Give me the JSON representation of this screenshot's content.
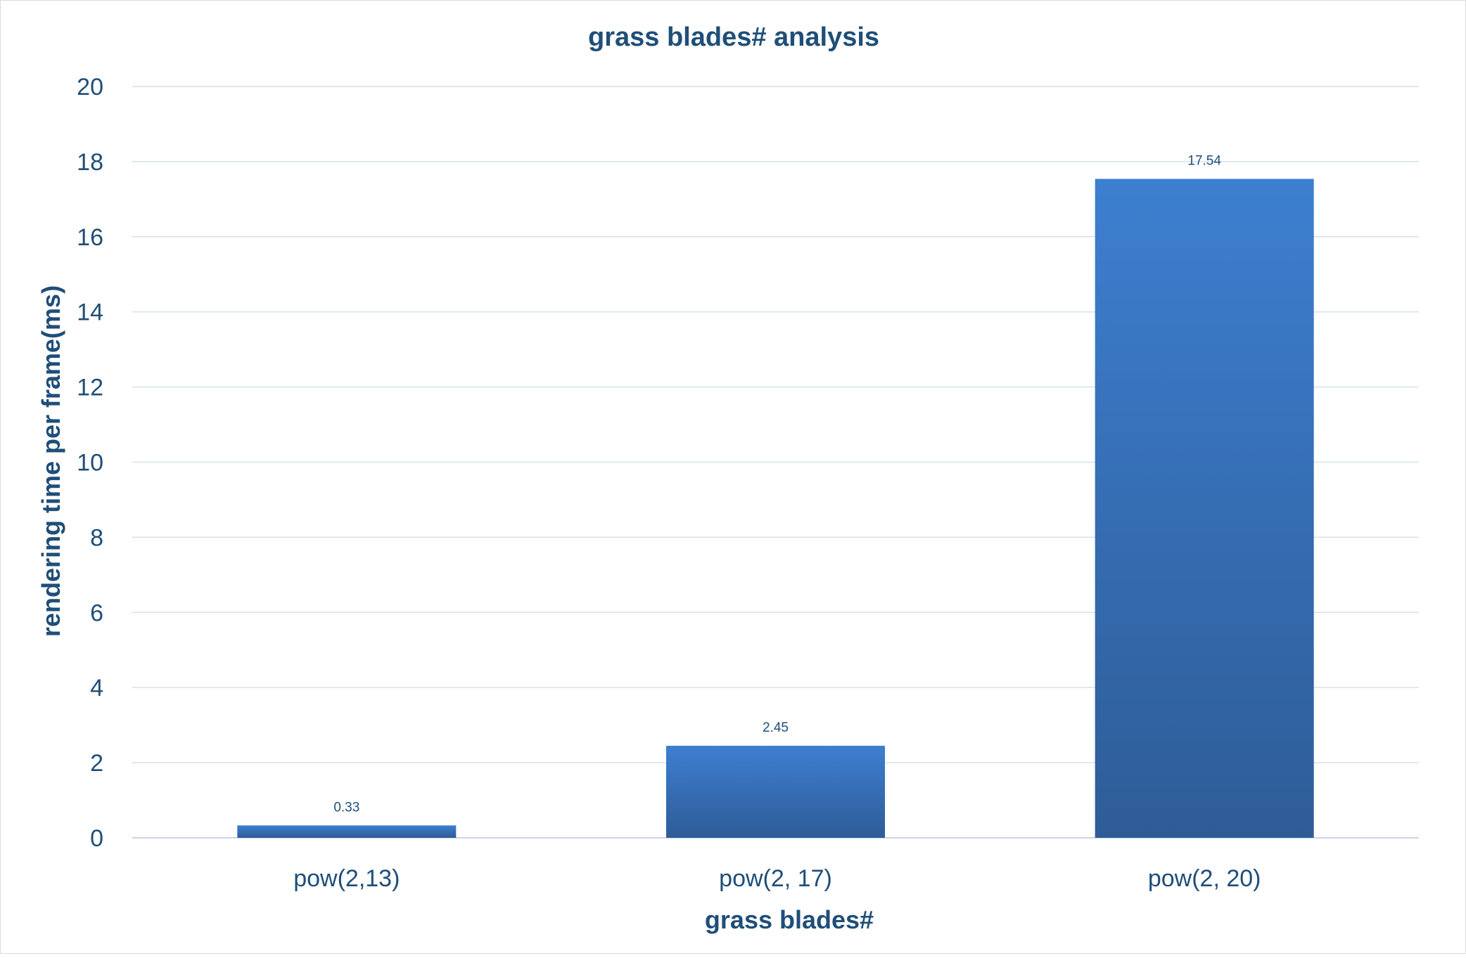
{
  "chart_data": {
    "type": "bar",
    "title": "grass blades# analysis",
    "xlabel": "grass blades#",
    "ylabel": "rendering time per frame(ms)",
    "categories": [
      "pow(2,13)",
      "pow(2, 17)",
      "pow(2, 20)"
    ],
    "values": [
      0.33,
      2.45,
      17.54
    ],
    "data_labels": [
      "0.33",
      "2.45",
      "17.54"
    ],
    "ylim": [
      0,
      20
    ],
    "yticks": [
      0,
      2,
      4,
      6,
      8,
      10,
      12,
      14,
      16,
      18,
      20
    ],
    "ytick_labels": [
      "0",
      "2",
      "4",
      "6",
      "8",
      "10",
      "12",
      "14",
      "16",
      "18",
      "20"
    ],
    "grid": true,
    "legend": "none",
    "colors": {
      "bar_top": "#3d7fd0",
      "bar_bottom": "#2e5c97",
      "text": "#1f4e79",
      "grid": "#d6e1ee"
    }
  }
}
